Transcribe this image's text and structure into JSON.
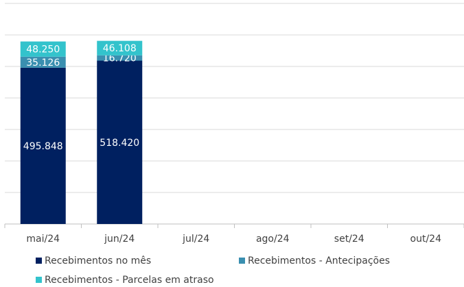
{
  "chart_data": {
    "type": "bar",
    "stacked": true,
    "categories": [
      "mai/24",
      "jun/24",
      "jul/24",
      "ago/24",
      "set/24",
      "out/24"
    ],
    "series": [
      {
        "name": "Recebimentos no mês",
        "color": "#002060",
        "values": [
          495848,
          518420,
          null,
          null,
          null,
          null
        ],
        "value_labels": [
          "495.848",
          "518.420",
          null,
          null,
          null,
          null
        ]
      },
      {
        "name": "Recebimentos - Antecipações",
        "color": "#3a8fb0",
        "values": [
          35126,
          16720,
          null,
          null,
          null,
          null
        ],
        "value_labels": [
          "35.126",
          "16.720",
          null,
          null,
          null,
          null
        ]
      },
      {
        "name": "Recebimentos - Parcelas em atraso",
        "color": "#33c3cc",
        "values": [
          48250,
          46108,
          null,
          null,
          null,
          null
        ],
        "value_labels": [
          "48.250",
          "46.108",
          null,
          null,
          null,
          null
        ]
      }
    ],
    "ylim": [
      0,
      700000
    ],
    "yticks": [
      0,
      100000,
      200000,
      300000,
      400000,
      500000,
      600000,
      700000
    ],
    "grid": true
  }
}
